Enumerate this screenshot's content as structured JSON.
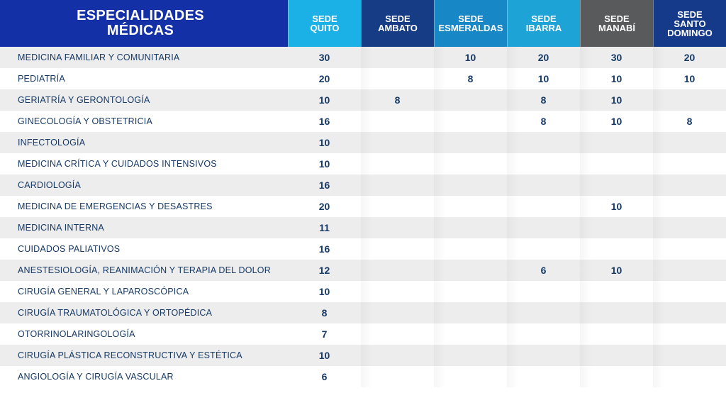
{
  "header": {
    "title": "ESPECIALIDADES\nMÉDICAS",
    "sedes": [
      {
        "label": "SEDE\nQUITO",
        "color": "#1bb0e6"
      },
      {
        "label": "SEDE\nAMBATO",
        "color": "#173c86"
      },
      {
        "label": "SEDE\nESMERALDAS",
        "color": "#1787c6"
      },
      {
        "label": "SEDE\nIBARRA",
        "color": "#1ea3d6"
      },
      {
        "label": "SEDE\nMANABÍ",
        "color": "#595a5c"
      },
      {
        "label": "SEDE\nSANTO\nDOMINGO",
        "color": "#163a8a"
      }
    ]
  },
  "rows": [
    {
      "name": "MEDICINA FAMILIAR Y COMUNITARIA",
      "values": [
        "30",
        "",
        "10",
        "20",
        "30",
        "20"
      ]
    },
    {
      "name": "PEDIATRÍA",
      "values": [
        "20",
        "",
        "8",
        "10",
        "10",
        "10"
      ]
    },
    {
      "name": "GERIATRÍA Y GERONTOLOGÍA",
      "values": [
        "10",
        "8",
        "",
        "8",
        "10",
        ""
      ]
    },
    {
      "name": "GINECOLOGÍA Y OBSTETRICIA",
      "values": [
        "16",
        "",
        "",
        "8",
        "10",
        "8"
      ]
    },
    {
      "name": "INFECTOLOGÍA",
      "values": [
        "10",
        "",
        "",
        "",
        "",
        ""
      ]
    },
    {
      "name": "MEDICINA CRÍTICA Y CUIDADOS INTENSIVOS",
      "values": [
        "10",
        "",
        "",
        "",
        "",
        ""
      ]
    },
    {
      "name": "CARDIOLOGÍA",
      "values": [
        "16",
        "",
        "",
        "",
        "",
        ""
      ]
    },
    {
      "name": "MEDICINA DE EMERGENCIAS Y DESASTRES",
      "values": [
        "20",
        "",
        "",
        "",
        "10",
        ""
      ]
    },
    {
      "name": "MEDICINA INTERNA",
      "values": [
        "11",
        "",
        "",
        "",
        "",
        ""
      ]
    },
    {
      "name": "CUIDADOS PALIATIVOS",
      "values": [
        "16",
        "",
        "",
        "",
        "",
        ""
      ]
    },
    {
      "name": "ANESTESIOLOGÍA, REANIMACIÓN Y TERAPIA DEL DOLOR",
      "values": [
        "12",
        "",
        "",
        "6",
        "10",
        ""
      ]
    },
    {
      "name": "CIRUGÍA GENERAL Y LAPAROSCÓPICA",
      "values": [
        "10",
        "",
        "",
        "",
        "",
        ""
      ]
    },
    {
      "name": "CIRUGÍA TRAUMATOLÓGICA Y ORTOPÉDICA",
      "values": [
        "8",
        "",
        "",
        "",
        "",
        ""
      ]
    },
    {
      "name": "OTORRINOLARINGOLOGÍA",
      "values": [
        "7",
        "",
        "",
        "",
        "",
        ""
      ]
    },
    {
      "name": "CIRUGÍA PLÁSTICA RECONSTRUCTIVA Y ESTÉTICA",
      "values": [
        "10",
        "",
        "",
        "",
        "",
        ""
      ]
    },
    {
      "name": "ANGIOLOGÍA Y CIRUGÍA VASCULAR",
      "values": [
        "6",
        "",
        "",
        "",
        "",
        ""
      ]
    }
  ]
}
